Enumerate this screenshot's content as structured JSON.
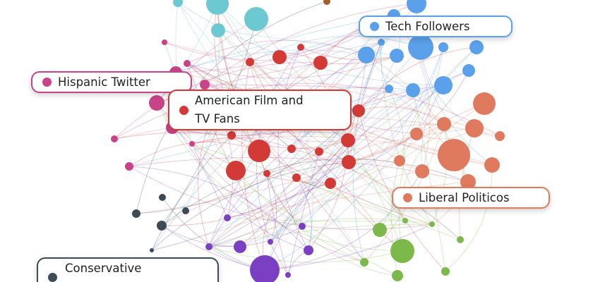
{
  "clusters": [
    {
      "label": "Tech Followers"
    },
    {
      "label": "Hispanic Twitter"
    },
    {
      "label": "American Film and TV Fans"
    },
    {
      "label": "Liberal Politicos"
    },
    {
      "label": "Conservative"
    }
  ]
}
